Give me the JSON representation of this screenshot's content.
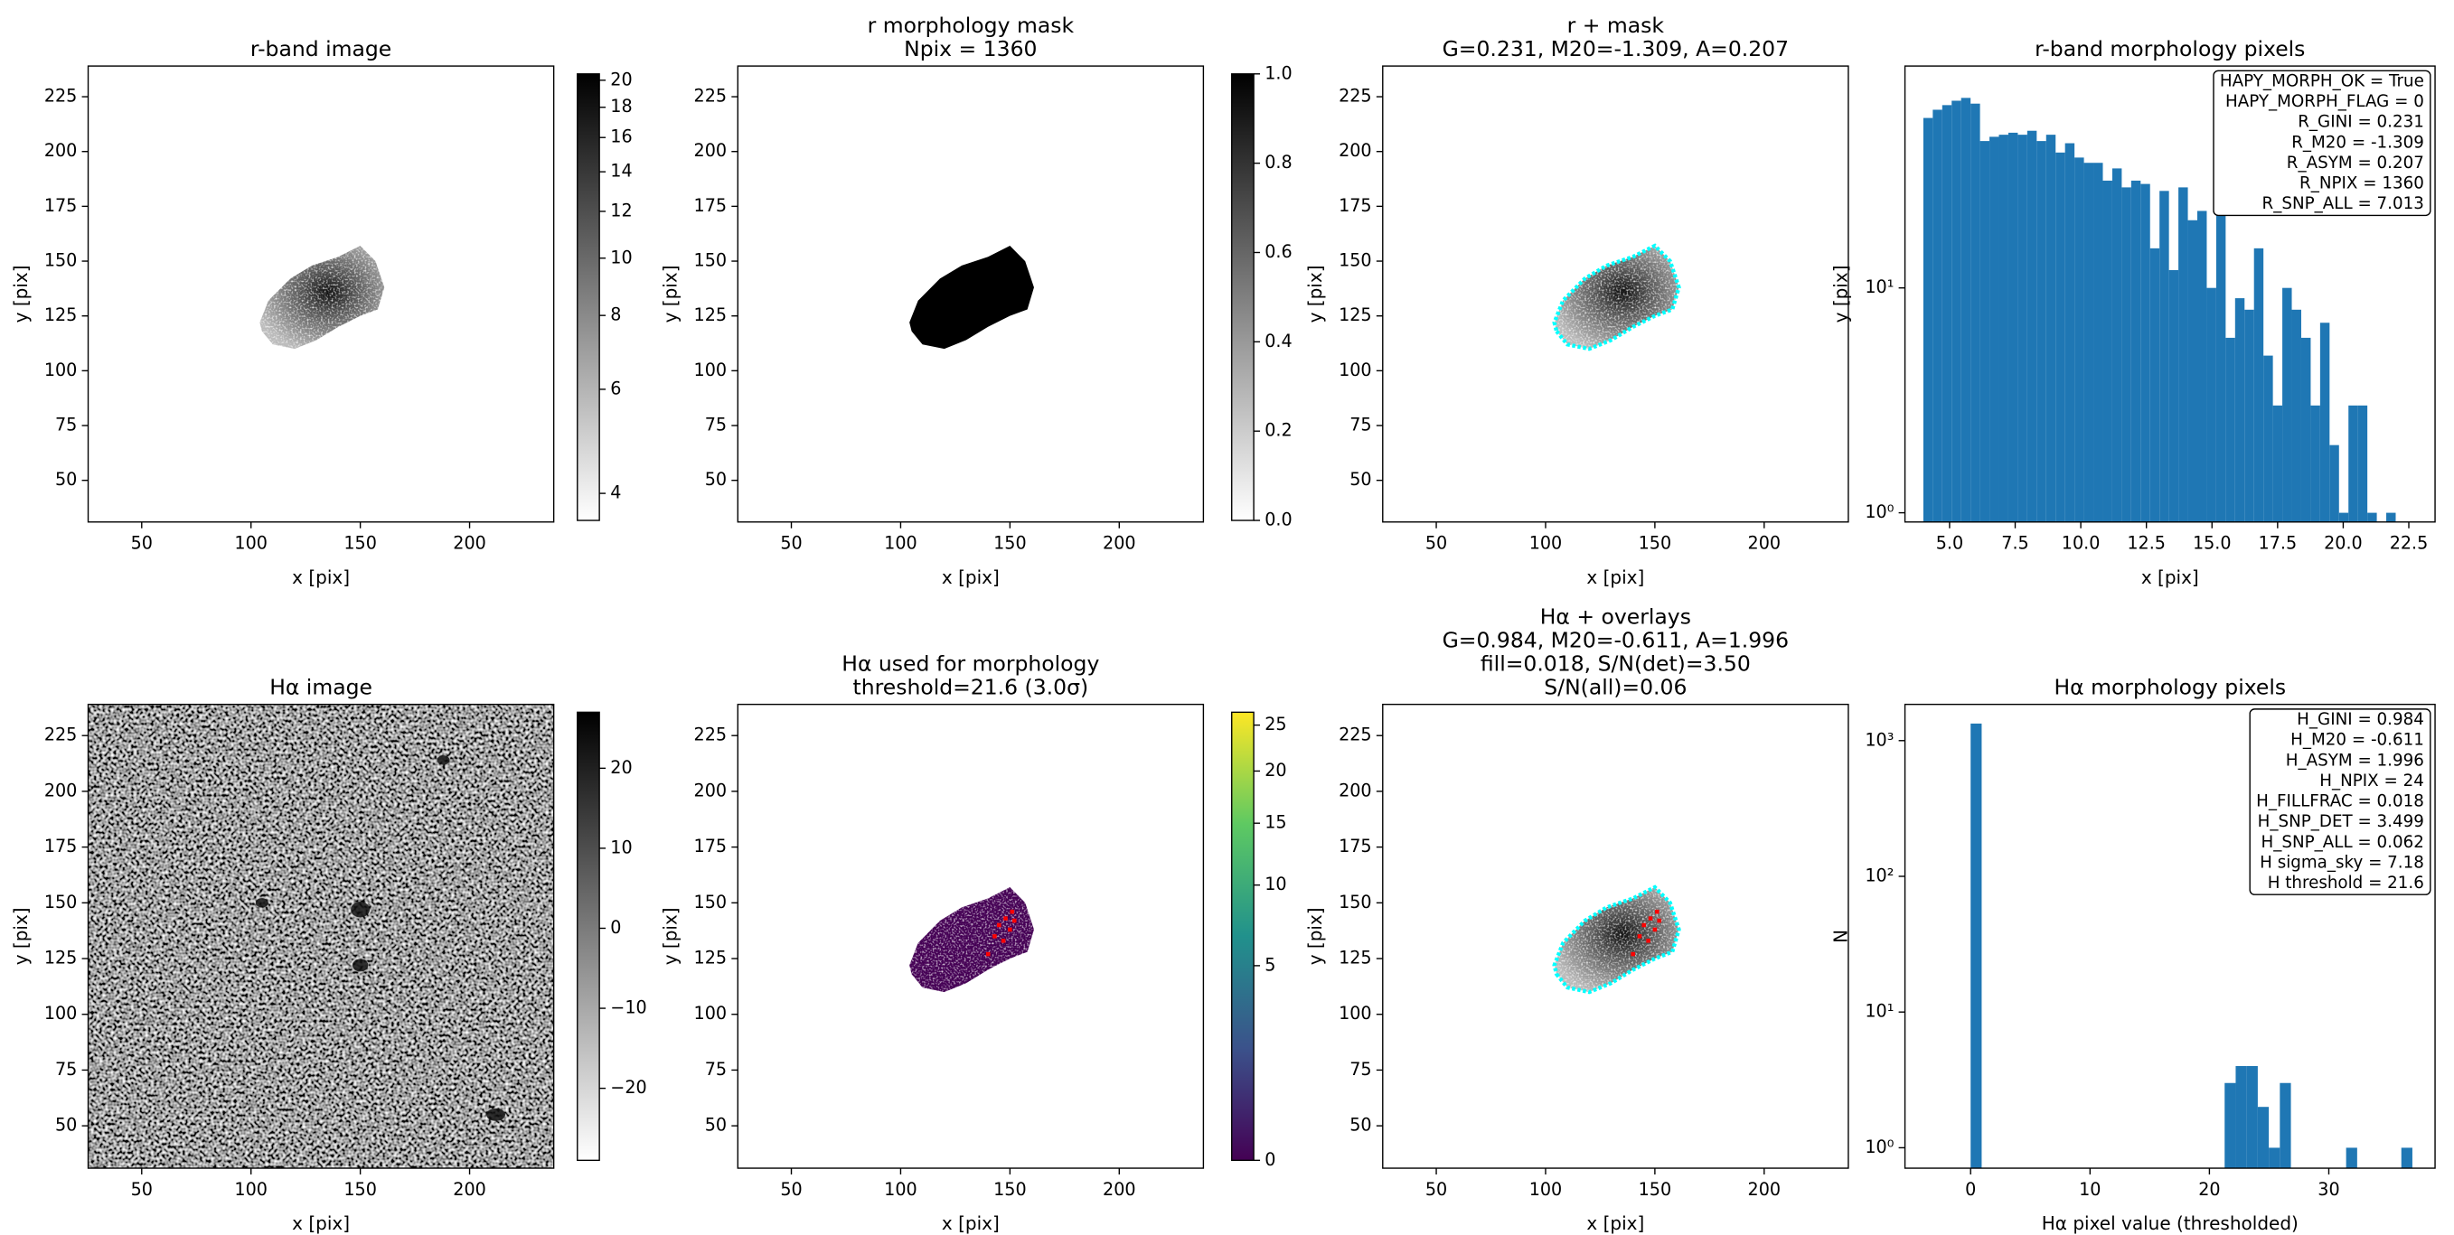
{
  "chart_data": [
    {
      "type": "image",
      "title": [
        "r-band image"
      ],
      "x_label": "x [pix]",
      "y_label": "y [pix]",
      "xlim": [
        25.5,
        238.5
      ],
      "ylim": [
        31,
        239
      ],
      "xticks": [
        50,
        100,
        150,
        200
      ],
      "yticks": [
        50,
        75,
        100,
        125,
        150,
        175,
        200,
        225
      ],
      "colorbar": {
        "colormap": "gray_r",
        "scale": "log",
        "clim": [
          3.6,
          20.5
        ],
        "ticks": [
          4,
          6,
          8,
          10,
          12,
          14,
          16,
          18,
          20
        ]
      }
    },
    {
      "type": "image",
      "title": [
        "r morphology mask",
        "Npix = 1360"
      ],
      "x_label": "x [pix]",
      "y_label": "y [pix]",
      "xlim": [
        25.5,
        238.5
      ],
      "ylim": [
        31,
        239
      ],
      "xticks": [
        50,
        100,
        150,
        200
      ],
      "yticks": [
        50,
        75,
        100,
        125,
        150,
        175,
        200,
        225
      ],
      "colorbar": {
        "colormap": "gray_r",
        "scale": "linear",
        "clim": [
          0,
          1
        ],
        "ticks": [
          {
            "value": 0,
            "label": "0.0"
          },
          0.2,
          0.4,
          0.6,
          0.8,
          {
            "value": 1,
            "label": "1.0"
          }
        ]
      }
    },
    {
      "type": "image",
      "title": [
        "r + mask",
        "G=0.231, M20=-1.309, A=0.207"
      ],
      "x_label": "x [pix]",
      "y_label": "y [pix]",
      "xlim": [
        25.5,
        238.5
      ],
      "ylim": [
        31,
        239
      ],
      "xticks": [
        50,
        100,
        150,
        200
      ],
      "yticks": [
        50,
        75,
        100,
        125,
        150,
        175,
        200,
        225
      ],
      "mask_color": "#00ffff"
    },
    {
      "type": "histogram",
      "title": [
        "r-band morphology pixels"
      ],
      "x_label": "x [pix]",
      "y_label": "y [pix]",
      "color": "#1f77b4",
      "xlim": [
        3.3,
        23.5
      ],
      "ylim": [
        0.91,
        97
      ],
      "yscale": "log",
      "xticks": [
        {
          "value": 5,
          "label": "5.0"
        },
        7.5,
        {
          "value": 10,
          "label": "10.0"
        },
        12.5,
        {
          "value": 15,
          "label": "15.0"
        },
        17.5,
        {
          "value": 20,
          "label": "20.0"
        },
        22.5
      ],
      "yticks": [
        {
          "value": 1,
          "label": "10⁰"
        },
        {
          "value": 10,
          "label": "10¹"
        }
      ],
      "bins": [
        4.0,
        4.36,
        4.72,
        5.08,
        5.44,
        5.8,
        6.16,
        6.52,
        6.88,
        7.24,
        7.6,
        7.96,
        8.32,
        8.68,
        9.04,
        9.4,
        9.76,
        10.12,
        10.48,
        10.84,
        11.2,
        11.56,
        11.92,
        12.28,
        12.64,
        13.0,
        13.36,
        13.72,
        14.08,
        14.44,
        14.8,
        15.16,
        15.52,
        15.88,
        16.24,
        16.6,
        16.96,
        17.32,
        17.68,
        18.04,
        18.4,
        18.76,
        19.12,
        19.48,
        19.84,
        20.2,
        20.56,
        20.92,
        21.28,
        21.64,
        22.0
      ],
      "counts": [
        57,
        62,
        65,
        68,
        70,
        66,
        45,
        47,
        48,
        49,
        48,
        50,
        45,
        48,
        40,
        44,
        38,
        36,
        36,
        30,
        34,
        28,
        30,
        29,
        15,
        27,
        12,
        28,
        20,
        22,
        10,
        22,
        6,
        9,
        8,
        15,
        5,
        3,
        10,
        8,
        6,
        3,
        7,
        2,
        1,
        3,
        3,
        1,
        0,
        1
      ],
      "annotation": [
        "HAPY_MORPH_OK = True",
        "HAPY_MORPH_FLAG = 0",
        "R_GINI = 0.231",
        "R_M20 = -1.309",
        "R_ASYM = 0.207",
        "R_NPIX = 1360",
        "R_SNP_ALL = 7.013"
      ]
    },
    {
      "type": "image",
      "title": [
        "Hα image"
      ],
      "x_label": "x [pix]",
      "y_label": "y [pix]",
      "xlim": [
        25.5,
        238.5
      ],
      "ylim": [
        31,
        239
      ],
      "xticks": [
        50,
        100,
        150,
        200
      ],
      "yticks": [
        50,
        75,
        100,
        125,
        150,
        175,
        200,
        225
      ],
      "colorbar": {
        "colormap": "gray_r",
        "scale": "linear",
        "clim": [
          -29,
          27
        ],
        "ticks": [
          {
            "value": -20,
            "label": "−20"
          },
          {
            "value": -10,
            "label": "−10"
          },
          0,
          10,
          20
        ]
      }
    },
    {
      "type": "image",
      "title": [
        "Hα used for morphology",
        "threshold=21.6 (3.0σ)"
      ],
      "x_label": "x [pix]",
      "y_label": "y [pix]",
      "xlim": [
        25.5,
        238.5
      ],
      "ylim": [
        31,
        239
      ],
      "xticks": [
        50,
        100,
        150,
        200
      ],
      "yticks": [
        50,
        75,
        100,
        125,
        150,
        175,
        200,
        225
      ],
      "detection_color": "#ff0000",
      "colorbar": {
        "colormap": "viridis",
        "scale": "sqrt",
        "clim": [
          0,
          26.5
        ],
        "ticks": [
          0,
          5,
          10,
          15,
          20,
          25
        ]
      }
    },
    {
      "type": "image",
      "title": [
        "Hα + overlays",
        "G=0.984, M20=-0.611, A=1.996",
        "fill=0.018, S/N(det)=3.50",
        "S/N(all)=0.06"
      ],
      "x_label": "x [pix]",
      "y_label": "y [pix]",
      "xlim": [
        25.5,
        238.5
      ],
      "ylim": [
        31,
        239
      ],
      "xticks": [
        50,
        100,
        150,
        200
      ],
      "yticks": [
        50,
        75,
        100,
        125,
        150,
        175,
        200,
        225
      ],
      "mask_color": "#00ffff",
      "detection_color": "#ff0000"
    },
    {
      "type": "histogram",
      "title": [
        "Hα morphology pixels"
      ],
      "x_label": "Hα pixel value (thresholded)",
      "y_label": "N",
      "color": "#1f77b4",
      "xlim": [
        -5.5,
        38.9
      ],
      "ylim": [
        0.707,
        1850
      ],
      "yscale": "log",
      "xticks": [
        0,
        10,
        20,
        30
      ],
      "yticks": [
        {
          "value": 1,
          "label": "10⁰"
        },
        {
          "value": 10,
          "label": "10¹"
        },
        {
          "value": 100,
          "label": "10²"
        },
        {
          "value": 1000,
          "label": "10³"
        }
      ],
      "bins": [
        0,
        0.925,
        1.85,
        2.775,
        3.7,
        4.625,
        5.55,
        6.475,
        7.4,
        8.325,
        9.25,
        10.175,
        11.1,
        12.025,
        12.95,
        13.875,
        14.8,
        15.725,
        16.65,
        17.575,
        18.5,
        19.425,
        20.35,
        21.275,
        22.2,
        23.125,
        24.05,
        24.975,
        25.9,
        26.825,
        27.75,
        28.675,
        29.6,
        30.525,
        31.45,
        32.375,
        33.3,
        34.225,
        35.15,
        36.075,
        37.0
      ],
      "counts": [
        1336,
        0,
        0,
        0,
        0,
        0,
        0,
        0,
        0,
        0,
        0,
        0,
        0,
        0,
        0,
        0,
        0,
        0,
        0,
        0,
        0,
        0,
        0,
        3,
        4,
        4,
        2,
        1,
        3,
        0,
        0,
        0,
        0,
        0,
        1,
        0,
        0,
        0,
        0,
        1
      ],
      "annotation": [
        "H_GINI = 0.984",
        "H_M20 = -0.611",
        "H_ASYM = 1.996",
        "H_NPIX = 24",
        "H_FILLFRAC = 0.018",
        "H_SNP_DET = 3.499",
        "H_SNP_ALL = 0.062",
        "H sigma_sky = 7.18",
        "H threshold = 21.6"
      ]
    }
  ]
}
